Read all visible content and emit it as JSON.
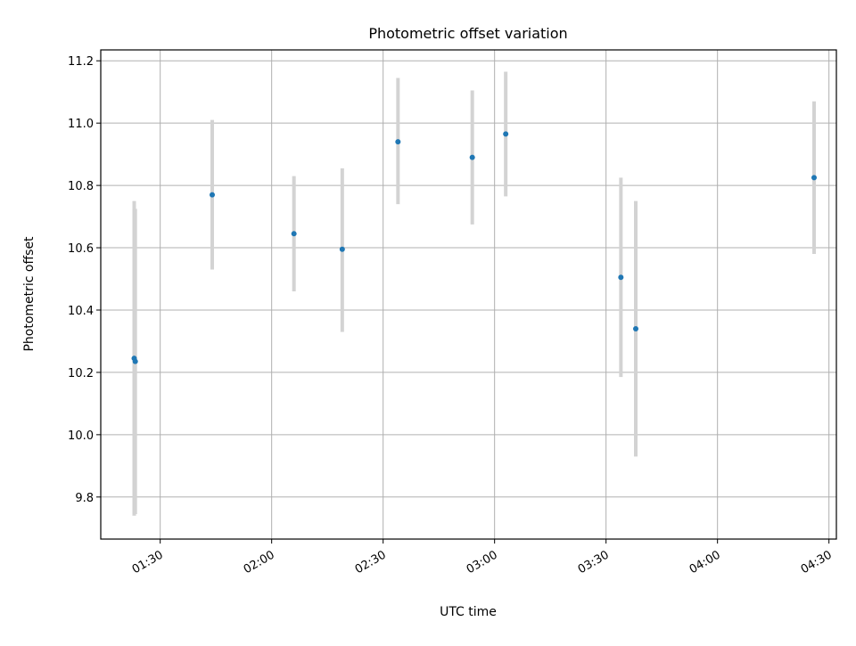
{
  "chart_data": {
    "type": "scatter",
    "title": "Photometric offset variation",
    "xlabel": "UTC time",
    "ylabel": "Photometric offset",
    "x_axis_kind": "time",
    "xlim": [
      "01:14",
      "04:32"
    ],
    "ylim": [
      9.665,
      11.235
    ],
    "grid": true,
    "x_ticks": [
      "01:30",
      "02:00",
      "02:30",
      "03:00",
      "03:30",
      "04:00",
      "04:30"
    ],
    "y_ticks": [
      "9.8",
      "10.0",
      "10.2",
      "10.4",
      "10.6",
      "10.8",
      "11.0",
      "11.2"
    ],
    "colors": {
      "point": "#1f77b4",
      "errorbar": "#d3d3d3",
      "grid": "#b0b0b0"
    },
    "points": [
      {
        "x": "01:23",
        "y": 10.245,
        "ylow": 9.74,
        "yhigh": 10.75
      },
      {
        "x": "01:23",
        "y": 10.235,
        "ylow": 9.745,
        "yhigh": 10.725
      },
      {
        "x": "01:44",
        "y": 10.77,
        "ylow": 10.53,
        "yhigh": 11.01
      },
      {
        "x": "02:06",
        "y": 10.645,
        "ylow": 10.46,
        "yhigh": 10.83
      },
      {
        "x": "02:19",
        "y": 10.595,
        "ylow": 10.33,
        "yhigh": 10.855
      },
      {
        "x": "02:34",
        "y": 10.94,
        "ylow": 10.74,
        "yhigh": 11.145
      },
      {
        "x": "02:54",
        "y": 10.89,
        "ylow": 10.675,
        "yhigh": 11.105
      },
      {
        "x": "03:03",
        "y": 10.965,
        "ylow": 10.765,
        "yhigh": 11.165
      },
      {
        "x": "03:34",
        "y": 10.505,
        "ylow": 10.185,
        "yhigh": 10.825
      },
      {
        "x": "03:38",
        "y": 10.34,
        "ylow": 9.93,
        "yhigh": 10.75
      },
      {
        "x": "04:26",
        "y": 10.825,
        "ylow": 10.58,
        "yhigh": 11.07
      }
    ]
  }
}
